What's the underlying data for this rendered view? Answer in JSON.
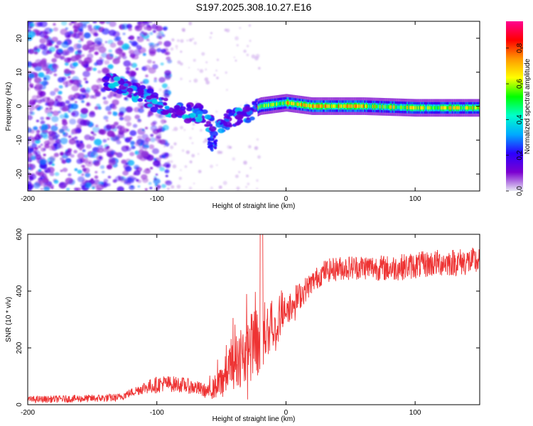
{
  "figure_title": "S197.2025.308.10.27.E16",
  "chart_data": [
    {
      "type": "heatmap",
      "title": "S197.2025.308.10.27.E16",
      "xlabel": "Height of straight line (km)",
      "ylabel": "Frequency (Hz)",
      "xlim": [
        -200,
        150
      ],
      "ylim": [
        -25,
        25
      ],
      "x_ticks": [
        -200,
        -100,
        0,
        100
      ],
      "x_tick_labels": [
        "-200",
        "-100",
        "0",
        "100"
      ],
      "y_ticks": [
        -20,
        -10,
        0,
        10,
        20
      ],
      "y_tick_labels": [
        "-20",
        "-10",
        "0",
        "10",
        "20"
      ],
      "colorbar": {
        "label": "Normalized spectral amplitude",
        "range": [
          0,
          0.95
        ],
        "ticks": [
          0.0,
          0.2,
          0.4,
          0.6,
          0.8
        ],
        "tick_labels": [
          "0.0",
          "0.2",
          "0.4",
          "0.6",
          "0.8"
        ],
        "colormap": [
          "#e8e8f4",
          "#7b00d0",
          "#2c00ff",
          "#00aaff",
          "#00ffcc",
          "#00ff00",
          "#ffff00",
          "#ff9900",
          "#ff0000",
          "#ff0090"
        ]
      },
      "ridge": {
        "description_points_km_hz": [
          [
            -135,
            7
          ],
          [
            -110,
            3
          ],
          [
            -95,
            0
          ],
          [
            -80,
            -2
          ],
          [
            -65,
            -2
          ],
          [
            -55,
            -7
          ],
          [
            -45,
            -4
          ],
          [
            -35,
            -3
          ],
          [
            -20,
            0
          ],
          [
            0,
            1
          ],
          [
            20,
            0
          ],
          [
            60,
            0
          ],
          [
            100,
            -0.5
          ],
          [
            150,
            -0.5
          ]
        ],
        "ridge_peak_amplitude": 0.95
      }
    },
    {
      "type": "line",
      "xlabel": "Height of straight line (km)",
      "ylabel": "SNR (10 * v/v)",
      "xlim": [
        -200,
        150
      ],
      "ylim": [
        0,
        600
      ],
      "x_ticks": [
        -200,
        -100,
        0,
        100
      ],
      "x_tick_labels": [
        "-200",
        "-100",
        "0",
        "100"
      ],
      "y_ticks": [
        0,
        200,
        400,
        600
      ],
      "y_tick_labels": [
        "0",
        "200",
        "400",
        "600"
      ],
      "color": "#ee3333",
      "trend": {
        "x": [
          -200,
          -150,
          -130,
          -110,
          -95,
          -80,
          -70,
          -60,
          -50,
          -40,
          -30,
          -20,
          -10,
          0,
          10,
          20,
          30,
          40,
          60,
          80,
          100,
          120,
          150
        ],
        "y": [
          18,
          22,
          25,
          60,
          75,
          70,
          60,
          45,
          80,
          150,
          180,
          240,
          260,
          330,
          380,
          430,
          470,
          480,
          485,
          480,
          490,
          500,
          505
        ]
      },
      "noise_amplitude": [
        [
          -200,
          12
        ],
        [
          -120,
          15
        ],
        [
          -100,
          30
        ],
        [
          -60,
          25
        ],
        [
          -45,
          80
        ],
        [
          -30,
          120
        ],
        [
          -20,
          150
        ],
        [
          -10,
          90
        ],
        [
          0,
          60
        ],
        [
          20,
          40
        ],
        [
          60,
          45
        ],
        [
          150,
          50
        ]
      ]
    }
  ]
}
